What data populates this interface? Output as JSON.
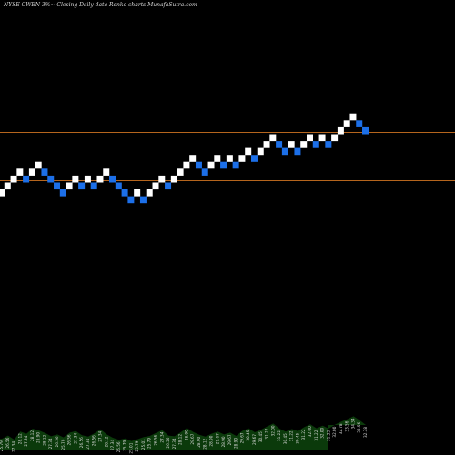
{
  "header": {
    "symbol": "NYSE CWEN  3%~",
    "description": "Closing Daily data  Renko  charts MunafaSutra.com"
  },
  "colors": {
    "background": "#000000",
    "up_brick": "#ffffff",
    "down_brick": "#1c6fe8",
    "reference_line": "#b5651d",
    "volume_area": "#0b3a0b",
    "volume_label": "#dcdcdc"
  },
  "chart_data": {
    "type": "renko",
    "title": "",
    "brick_size_percent": 3,
    "reference_lines": [
      31.4,
      26.35
    ],
    "ylim": [
      10,
      33.5
    ],
    "bricks": [
      {
        "dir": "up",
        "value": 25.79
      },
      {
        "dir": "up",
        "value": 26.56
      },
      {
        "dir": "up",
        "value": 27.34
      },
      {
        "dir": "up",
        "value": 28.12
      },
      {
        "dir": "down",
        "value": 27.34
      },
      {
        "dir": "up",
        "value": 28.12
      },
      {
        "dir": "up",
        "value": 28.9
      },
      {
        "dir": "down",
        "value": 28.12
      },
      {
        "dir": "down",
        "value": 27.34
      },
      {
        "dir": "down",
        "value": 26.56
      },
      {
        "dir": "down",
        "value": 25.79
      },
      {
        "dir": "up",
        "value": 26.56
      },
      {
        "dir": "up",
        "value": 27.34
      },
      {
        "dir": "down",
        "value": 26.56
      },
      {
        "dir": "up",
        "value": 27.34
      },
      {
        "dir": "down",
        "value": 26.56
      },
      {
        "dir": "up",
        "value": 27.34
      },
      {
        "dir": "up",
        "value": 28.12
      },
      {
        "dir": "down",
        "value": 27.34
      },
      {
        "dir": "down",
        "value": 26.56
      },
      {
        "dir": "down",
        "value": 25.79
      },
      {
        "dir": "down",
        "value": 25.01
      },
      {
        "dir": "up",
        "value": 25.79
      },
      {
        "dir": "down",
        "value": 25.01
      },
      {
        "dir": "up",
        "value": 25.79
      },
      {
        "dir": "up",
        "value": 26.56
      },
      {
        "dir": "up",
        "value": 27.34
      },
      {
        "dir": "down",
        "value": 26.56
      },
      {
        "dir": "up",
        "value": 27.34
      },
      {
        "dir": "up",
        "value": 28.12
      },
      {
        "dir": "up",
        "value": 28.9
      },
      {
        "dir": "up",
        "value": 29.67
      },
      {
        "dir": "down",
        "value": 28.9
      },
      {
        "dir": "down",
        "value": 28.12
      },
      {
        "dir": "up",
        "value": 28.9
      },
      {
        "dir": "up",
        "value": 29.67
      },
      {
        "dir": "down",
        "value": 28.9
      },
      {
        "dir": "up",
        "value": 29.67
      },
      {
        "dir": "down",
        "value": 28.9
      },
      {
        "dir": "up",
        "value": 29.67
      },
      {
        "dir": "up",
        "value": 30.45
      },
      {
        "dir": "down",
        "value": 29.67
      },
      {
        "dir": "up",
        "value": 30.45
      },
      {
        "dir": "up",
        "value": 31.22
      },
      {
        "dir": "up",
        "value": 32.0
      },
      {
        "dir": "down",
        "value": 31.22
      },
      {
        "dir": "down",
        "value": 30.45
      },
      {
        "dir": "up",
        "value": 31.22
      },
      {
        "dir": "down",
        "value": 30.45
      },
      {
        "dir": "up",
        "value": 31.22
      },
      {
        "dir": "up",
        "value": 32.0
      },
      {
        "dir": "down",
        "value": 31.22
      },
      {
        "dir": "up",
        "value": 32.0
      },
      {
        "dir": "down",
        "value": 31.22
      },
      {
        "dir": "up",
        "value": 32.0
      },
      {
        "dir": "up",
        "value": 32.78
      },
      {
        "dir": "up",
        "value": 33.56
      },
      {
        "dir": "up",
        "value": 34.34
      },
      {
        "dir": "down",
        "value": 33.56
      },
      {
        "dir": "down",
        "value": 32.78
      }
    ],
    "volume": [
      3.2,
      4.1,
      3.0,
      5.2,
      4.6,
      6.0,
      5.5,
      4.8,
      3.9,
      4.4,
      3.6,
      4.9,
      5.3,
      4.2,
      3.8,
      4.7,
      5.8,
      4.4,
      3.5,
      2.9,
      3.3,
      2.6,
      3.1,
      3.7,
      4.0,
      4.8,
      5.6,
      4.1,
      3.9,
      5.0,
      6.2,
      5.1,
      4.3,
      3.8,
      4.6,
      5.2,
      4.4,
      4.9,
      4.0,
      5.4,
      6.1,
      5.0,
      5.7,
      6.6,
      7.4,
      6.0,
      5.2,
      5.9,
      5.3,
      6.4,
      7.2,
      6.1,
      6.8,
      6.0,
      7.1,
      7.9,
      8.6,
      9.4,
      8.3,
      7.0
    ],
    "volume_labels": [
      "25.79",
      "26.56",
      "27.34",
      "28.12",
      "27.34",
      "28.12",
      "28.90",
      "28.12",
      "27.34",
      "26.56",
      "25.79",
      "26.56",
      "27.34",
      "26.56",
      "27.34",
      "26.56",
      "27.34",
      "28.12",
      "27.34",
      "26.56",
      "25.79",
      "25.01",
      "25.79",
      "25.01",
      "25.79",
      "26.56",
      "27.34",
      "26.56",
      "27.34",
      "28.12",
      "28.90",
      "29.67",
      "28.90",
      "28.12",
      "28.90",
      "29.67",
      "28.90",
      "29.67",
      "28.90",
      "29.67",
      "30.45",
      "29.67",
      "30.45",
      "31.22",
      "32.00",
      "31.22",
      "30.45",
      "31.22",
      "30.45",
      "31.22",
      "32.00",
      "31.22",
      "32.00",
      "31.22",
      "32.00",
      "32.78",
      "33.56",
      "34.34",
      "33.56",
      "32.78"
    ]
  }
}
